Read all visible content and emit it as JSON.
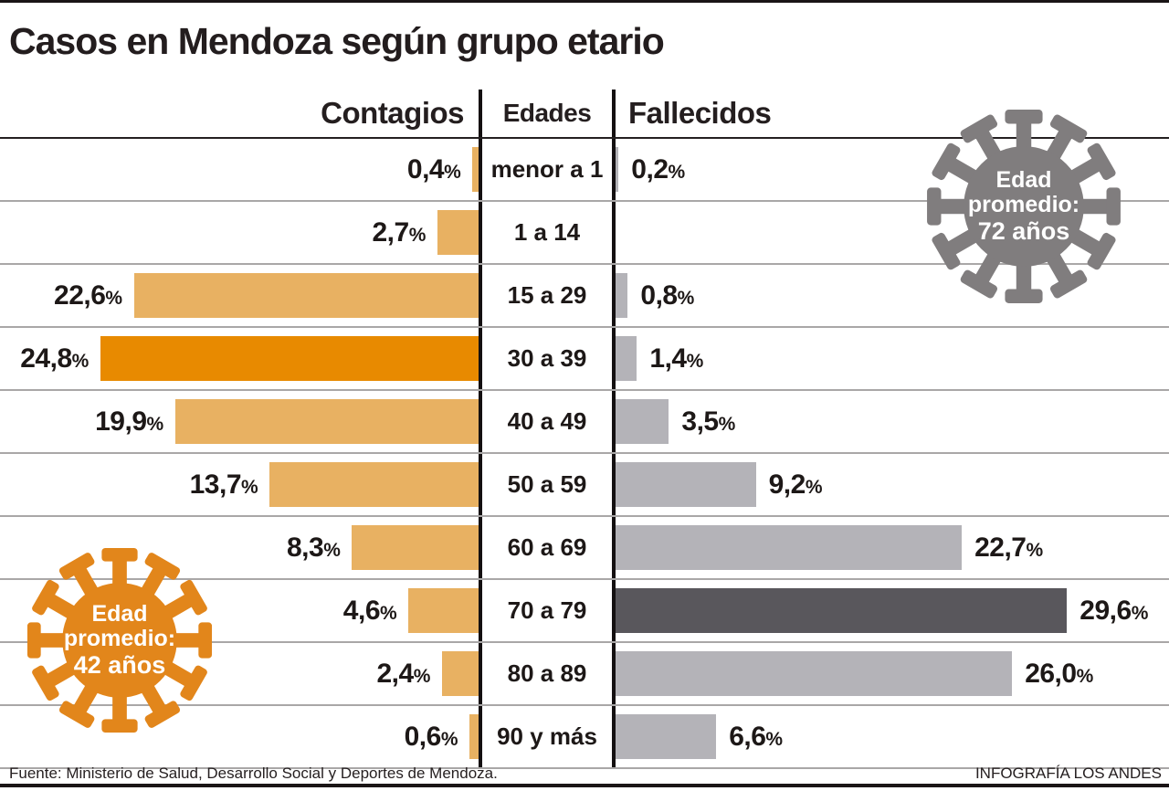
{
  "title": "Casos en Mendoza según grupo etario",
  "columns": {
    "left": "Contagios",
    "middle": "Edades",
    "right": "Fallecidos"
  },
  "badges": {
    "contagios": {
      "line1": "Edad",
      "line2": "promedio:",
      "line3": "42 años",
      "color": "#E2861B"
    },
    "fallecidos": {
      "line1": "Edad",
      "line2": "promedio:",
      "line3": "72 años",
      "color": "#807D7E"
    }
  },
  "footer": {
    "source": "Fuente: Ministerio de Salud, Desarrollo Social y Deportes de Mendoza.",
    "credit": "INFOGRAFÍA LOS ANDES"
  },
  "colors": {
    "contagios_bar": "#E8B162",
    "contagios_highlight": "#E88A00",
    "fallecidos_bar": "#B4B3B8",
    "fallecidos_highlight": "#59575C",
    "row_line": "#a9a7a7",
    "text": "#1d1817"
  },
  "chart_data": {
    "type": "bar",
    "orientation": "horizontal-diverging",
    "title": "Casos en Mendoza según grupo etario",
    "categories": [
      "menor a 1",
      "1 a 14",
      "15 a 29",
      "30 a 39",
      "40 a 49",
      "50 a 59",
      "60 a 69",
      "70 a 79",
      "80 a 89",
      "90 y más"
    ],
    "series": [
      {
        "name": "Contagios",
        "values": [
          0.4,
          2.7,
          22.6,
          24.8,
          19.9,
          13.7,
          8.3,
          4.6,
          2.4,
          0.6
        ],
        "labels": [
          "0,4%",
          "2,7%",
          "22,6%",
          "24,8%",
          "19,9%",
          "13,7%",
          "8,3%",
          "4,6%",
          "2,4%",
          "0,6%"
        ],
        "highlight_index": 3,
        "average_age": "42 años"
      },
      {
        "name": "Fallecidos",
        "values": [
          0.2,
          null,
          0.8,
          1.4,
          3.5,
          9.2,
          22.7,
          29.6,
          26.0,
          6.6
        ],
        "labels": [
          "0,2%",
          "",
          "0,8%",
          "1,4%",
          "3,5%",
          "9,2%",
          "22,7%",
          "29,6%",
          "26,0%",
          "6,6%"
        ],
        "highlight_index": 7,
        "average_age": "72 años"
      }
    ],
    "xlim": [
      0,
      30
    ],
    "grid": "horizontal-row-separators",
    "legend_position": "column-headers"
  }
}
